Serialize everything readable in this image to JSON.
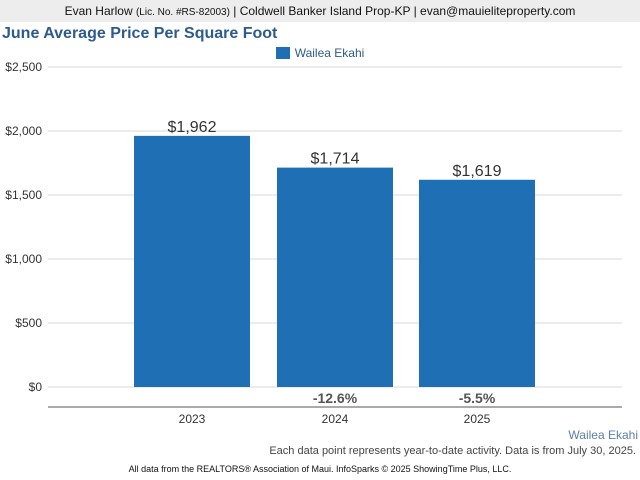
{
  "header": {
    "agent_name": "Evan Harlow",
    "license": "(Lic. No. #RS-82003)",
    "company_email": "| Coldwell Banker Island Prop-KP | evan@mauieliteproperty.com"
  },
  "footer": {
    "series_label": "Wailea Ekahi",
    "note": "Each data point represents year-to-date activity. Data is from July 30, 2025.",
    "source": "All data from the REALTORS® Association of Maui. InfoSparks © 2025 ShowingTime Plus, LLC."
  },
  "colors": {
    "bar": "#1f6fb5",
    "title": "#2d5b8c",
    "header_bg": "#ededed"
  },
  "chart_data": {
    "type": "bar",
    "title": "June Average Price Per Square Foot",
    "categories": [
      "2023",
      "2024",
      "2025"
    ],
    "series": [
      {
        "name": "Wailea Ekahi",
        "values": [
          1962,
          1714,
          1619
        ]
      }
    ],
    "value_labels": [
      "$1,962",
      "$1,714",
      "$1,619"
    ],
    "change_labels": [
      "",
      "-12.6%",
      "-5.5%"
    ],
    "ylim": [
      0,
      2500
    ],
    "yticks": [
      0,
      500,
      1000,
      1500,
      2000,
      2500
    ],
    "ytick_labels": [
      "$0",
      "$500",
      "$1,000",
      "$1,500",
      "$2,000",
      "$2,500"
    ],
    "grid": true,
    "legend": "top-center"
  }
}
